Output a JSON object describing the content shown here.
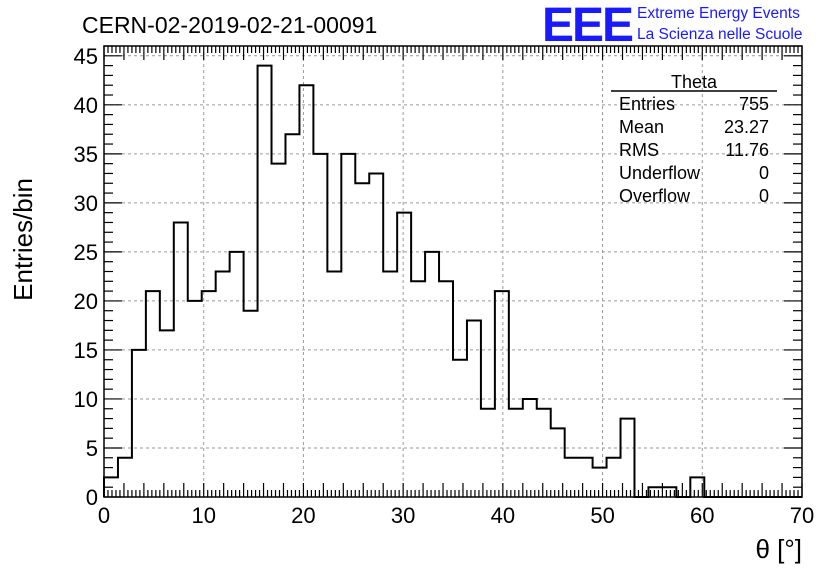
{
  "run_title": "CERN-02-2019-02-21-00091",
  "logo": {
    "mark": "EEE",
    "line1": "Extreme Energy Events",
    "line2": "La Scienza nelle Scuole",
    "color": "#1a1aff"
  },
  "stats_box": {
    "name": "Theta",
    "rows": [
      {
        "label": "Entries",
        "value": "755"
      },
      {
        "label": "Mean",
        "value": "23.27"
      },
      {
        "label": "RMS",
        "value": "11.76"
      },
      {
        "label": "Underflow",
        "value": "0"
      },
      {
        "label": "Overflow",
        "value": "0"
      }
    ]
  },
  "chart_data": {
    "type": "bar",
    "style": "step-histogram",
    "title": "CERN-02-2019-02-21-00091",
    "xlabel": "θ [°]",
    "ylabel": "Entries/bin",
    "xlim": [
      0,
      70
    ],
    "ylim": [
      0,
      46
    ],
    "grid": true,
    "bin_width": 1.4,
    "x_ticks": [
      0,
      10,
      20,
      30,
      40,
      50,
      60,
      70
    ],
    "y_ticks": [
      0,
      5,
      10,
      15,
      20,
      25,
      30,
      35,
      40,
      45
    ],
    "values": [
      2,
      4,
      15,
      21,
      17,
      28,
      20,
      21,
      23,
      25,
      19,
      44,
      34,
      37,
      42,
      35,
      23,
      35,
      32,
      33,
      23,
      29,
      22,
      25,
      22,
      14,
      18,
      9,
      21,
      9,
      10,
      9,
      7,
      4,
      4,
      3,
      4,
      8,
      0,
      1,
      1,
      0,
      2,
      0,
      0,
      0,
      0,
      0,
      0,
      0
    ]
  }
}
